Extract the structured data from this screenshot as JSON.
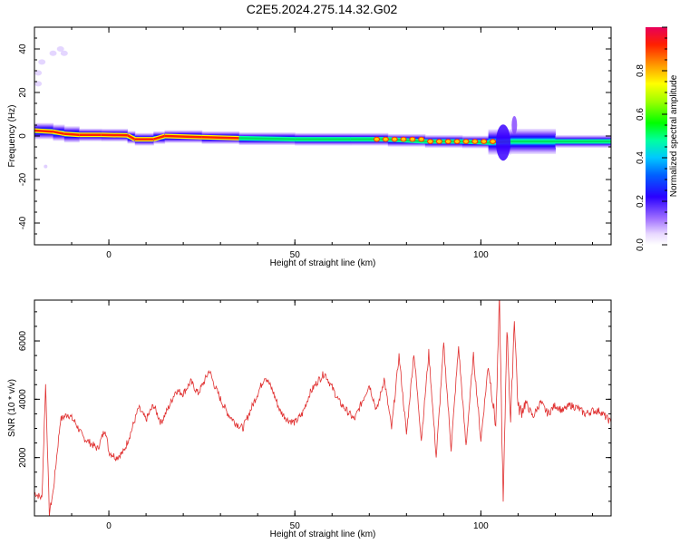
{
  "title": "C2E5.2024.275.14.32.G02",
  "chart_data": [
    {
      "type": "heatmap",
      "xlabel": "Height of straight line (km)",
      "ylabel": "Frequency (Hz)",
      "xlim": [
        -20,
        135
      ],
      "ylim": [
        -50,
        50
      ],
      "x_ticks": [
        "0",
        "50",
        "100"
      ],
      "x_tick_values": [
        0,
        50,
        100
      ],
      "y_ticks": [
        "40",
        "20",
        "0",
        "-20",
        "-40"
      ],
      "y_tick_values": [
        40,
        20,
        0,
        -20,
        -40
      ],
      "colorbar": {
        "label": "Normalized spectral amplitude",
        "ticks": [
          "0.0",
          "0.2",
          "0.4",
          "0.6",
          "0.8"
        ],
        "tick_values": [
          0.0,
          0.2,
          0.4,
          0.6,
          0.8
        ],
        "range": [
          0,
          1
        ]
      },
      "ridge": [
        {
          "x": -20,
          "freq": 2.5
        },
        {
          "x": -15,
          "freq": 2
        },
        {
          "x": -12,
          "freq": 1
        },
        {
          "x": -8,
          "freq": 0.5
        },
        {
          "x": -2,
          "freq": 0.5
        },
        {
          "x": 5,
          "freq": 0.3
        },
        {
          "x": 7,
          "freq": -1.5
        },
        {
          "x": 12,
          "freq": -1.5
        },
        {
          "x": 15,
          "freq": 0
        },
        {
          "x": 25,
          "freq": -0.5
        },
        {
          "x": 35,
          "freq": -1
        },
        {
          "x": 50,
          "freq": -1.5
        },
        {
          "x": 65,
          "freq": -1.5
        },
        {
          "x": 75,
          "freq": -1.5
        },
        {
          "x": 85,
          "freq": -2.5
        },
        {
          "x": 95,
          "freq": -2.5
        },
        {
          "x": 102,
          "freq": -3
        },
        {
          "x": 108,
          "freq": -2.5
        },
        {
          "x": 120,
          "freq": -2.5
        },
        {
          "x": 135,
          "freq": -2.5
        }
      ]
    },
    {
      "type": "line",
      "xlabel": "Height of straight line (km)",
      "ylabel": "SNR (10 * v/v)",
      "xlim": [
        -20,
        135
      ],
      "ylim": [
        0,
        7400
      ],
      "x_ticks": [
        "0",
        "50",
        "100"
      ],
      "x_tick_values": [
        0,
        50,
        100
      ],
      "y_ticks": [
        "2000",
        "4000",
        "6000"
      ],
      "y_tick_values": [
        2000,
        4000,
        6000
      ],
      "color": "#e03030",
      "series": [
        {
          "x": [
            -20,
            -18,
            -17,
            -16,
            -15,
            -13,
            -11,
            -9,
            -7,
            -5,
            -3,
            -1,
            0,
            2,
            4,
            6,
            8,
            10,
            12,
            14,
            16,
            18,
            20,
            22,
            24,
            26,
            27,
            28,
            30,
            32,
            34,
            36,
            38,
            40,
            41,
            42,
            44,
            46,
            48,
            50,
            52,
            54,
            56,
            58,
            60,
            62,
            64,
            66,
            68,
            70,
            72,
            74,
            76,
            78,
            80,
            82,
            84,
            86,
            88,
            90,
            92,
            94,
            96,
            98,
            100,
            102,
            104,
            105,
            106,
            107,
            108,
            109,
            110,
            111,
            112,
            114,
            116,
            118,
            120,
            122,
            124,
            126,
            128,
            130,
            132,
            135
          ],
          "y": [
            800,
            600,
            4500,
            100,
            800,
            3300,
            3500,
            3200,
            2700,
            2500,
            2300,
            3000,
            2200,
            2000,
            2200,
            2900,
            3700,
            3300,
            3800,
            3200,
            3700,
            4300,
            4200,
            4600,
            4200,
            4700,
            5000,
            4600,
            4000,
            3500,
            3200,
            3000,
            3600,
            4200,
            4500,
            4800,
            4300,
            3600,
            3300,
            3200,
            3500,
            4200,
            4600,
            4900,
            4400,
            3900,
            3600,
            3300,
            3900,
            4500,
            3600,
            4700,
            3000,
            5500,
            2800,
            5600,
            2600,
            5600,
            2000,
            5900,
            2300,
            5800,
            2400,
            5500,
            2600,
            5200,
            3100,
            7400,
            400,
            6500,
            3200,
            6800,
            3700,
            3600,
            3900,
            3400,
            3900,
            3500,
            3800,
            3600,
            3800,
            3700,
            3500,
            3600,
            3600,
            3200
          ]
        }
      ]
    }
  ]
}
